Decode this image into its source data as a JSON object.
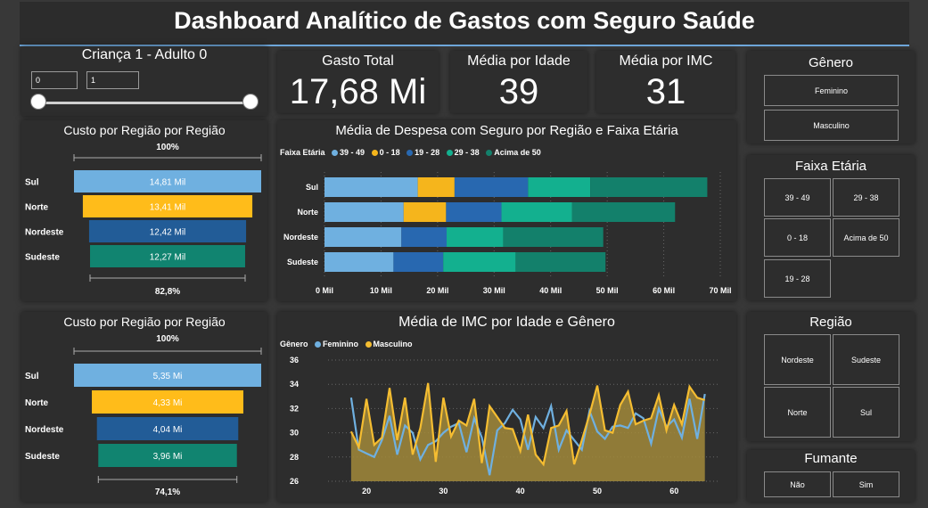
{
  "title": "Dashboard Analítico de Gastos com Seguro Saúde",
  "slider": {
    "label": "Criança 1 - Adulto 0",
    "min": "0",
    "max": "1"
  },
  "kpis": [
    {
      "label": "Gasto Total",
      "value": "17,68 Mi"
    },
    {
      "label": "Média por Idade",
      "value": "39"
    },
    {
      "label": "Média por IMC",
      "value": "31"
    }
  ],
  "filters": {
    "genero": {
      "title": "Gênero",
      "items": [
        "Feminino",
        "Masculino"
      ]
    },
    "faixa": {
      "title": "Faixa Etária",
      "items": [
        "39 - 49",
        "29 - 38",
        "0 - 18",
        "Acima de 50",
        "19 - 28"
      ]
    },
    "regiao": {
      "title": "Região",
      "items": [
        "Nordeste",
        "Sudeste",
        "Norte",
        "Sul"
      ]
    },
    "fumante": {
      "title": "Fumante",
      "items": [
        "Não",
        "Sim"
      ]
    }
  },
  "chart_data": [
    {
      "type": "funnel",
      "title": "Custo por Região por Região",
      "top_label": "100%",
      "bottom_label": "82,8%",
      "categories": [
        "Sul",
        "Norte",
        "Nordeste",
        "Sudeste"
      ],
      "values": [
        14.81,
        13.41,
        12.42,
        12.27
      ],
      "labels": [
        "14,81 Mil",
        "13,41 Mil",
        "12,42 Mil",
        "12,27 Mil"
      ],
      "colors": [
        "#6fb0e0",
        "#ffbc1a",
        "#225c97",
        "#118470"
      ]
    },
    {
      "type": "funnel",
      "title": "Custo por Região por Região",
      "top_label": "100%",
      "bottom_label": "74,1%",
      "categories": [
        "Sul",
        "Norte",
        "Nordeste",
        "Sudeste"
      ],
      "values": [
        5.35,
        4.33,
        4.04,
        3.96
      ],
      "labels": [
        "5,35 Mi",
        "4,33 Mi",
        "4,04 Mi",
        "3,96 Mi"
      ],
      "colors": [
        "#6fb0e0",
        "#ffbc1a",
        "#225c97",
        "#118470"
      ]
    },
    {
      "type": "bar",
      "stacked": true,
      "orientation": "horizontal",
      "title": "Média de Despesa com Seguro por Região e Faixa Etária",
      "legend_title": "Faixa Etária",
      "categories": [
        "Sul",
        "Norte",
        "Nordeste",
        "Sudeste"
      ],
      "series": [
        {
          "name": "39 - 49",
          "color": "#6fb0e0",
          "values": [
            16.5,
            14.0,
            13.6,
            12.2
          ]
        },
        {
          "name": "0 - 18",
          "color": "#f5b51c",
          "values": [
            6.5,
            7.5,
            0,
            0
          ]
        },
        {
          "name": "19 - 28",
          "color": "#2868b0",
          "values": [
            13.0,
            9.8,
            8.0,
            8.8
          ]
        },
        {
          "name": "29 - 38",
          "color": "#13b08f",
          "values": [
            11.0,
            12.5,
            10.0,
            12.8
          ]
        },
        {
          "name": "Acima de 50",
          "color": "#13806b",
          "values": [
            20.7,
            18.2,
            17.7,
            15.9
          ]
        }
      ],
      "xlim": [
        0,
        70
      ],
      "xticks": [
        "0 Mil",
        "10 Mil",
        "20 Mil",
        "30 Mil",
        "40 Mil",
        "50 Mil",
        "60 Mil",
        "70 Mil"
      ]
    },
    {
      "type": "area",
      "title": "Média de IMC por Idade e Gênero",
      "legend_title": "Gênero",
      "x": [
        18,
        19,
        20,
        21,
        22,
        23,
        24,
        25,
        26,
        27,
        28,
        29,
        30,
        31,
        32,
        33,
        34,
        35,
        36,
        37,
        38,
        39,
        40,
        41,
        42,
        43,
        44,
        45,
        46,
        47,
        48,
        49,
        50,
        51,
        52,
        53,
        54,
        55,
        56,
        57,
        58,
        59,
        60,
        61,
        62,
        63,
        64
      ],
      "series": [
        {
          "name": "Feminino",
          "color": "#6fb0e0",
          "values": [
            32.9,
            28.6,
            28.3,
            28.0,
            29.4,
            31.4,
            28.2,
            30.6,
            30.0,
            27.8,
            29.0,
            29.3,
            30.0,
            30.5,
            30.8,
            28.4,
            31.2,
            29.6,
            26.5,
            30.2,
            30.8,
            31.9,
            31.1,
            28.6,
            31.3,
            30.4,
            32.2,
            28.6,
            30.2,
            29.4,
            28.6,
            31.8,
            30.1,
            29.5,
            30.5,
            30.6,
            30.4,
            31.6,
            31.2,
            29.1,
            32.0,
            30.5,
            31.1,
            29.6,
            32.8,
            29.5,
            33.2
          ]
        },
        {
          "name": "Masculino",
          "color": "#f5bd31",
          "values": [
            30.1,
            28.8,
            32.8,
            29.0,
            29.6,
            33.7,
            29.4,
            32.9,
            28.2,
            30.4,
            34.1,
            27.6,
            32.9,
            29.7,
            31.0,
            30.6,
            32.8,
            27.5,
            32.2,
            31.3,
            30.4,
            30.3,
            28.5,
            31.5,
            28.2,
            27.4,
            30.4,
            30.6,
            31.8,
            27.4,
            29.4,
            31.5,
            33.9,
            30.2,
            30.0,
            32.3,
            33.4,
            30.7,
            31.0,
            31.2,
            33.1,
            30.2,
            32.3,
            30.7,
            33.8,
            32.9,
            32.7
          ]
        }
      ],
      "ylim": [
        26,
        36
      ],
      "yticks": [
        "26",
        "28",
        "30",
        "32",
        "34",
        "36"
      ],
      "xticks": [
        "20",
        "30",
        "40",
        "50",
        "60"
      ]
    }
  ]
}
